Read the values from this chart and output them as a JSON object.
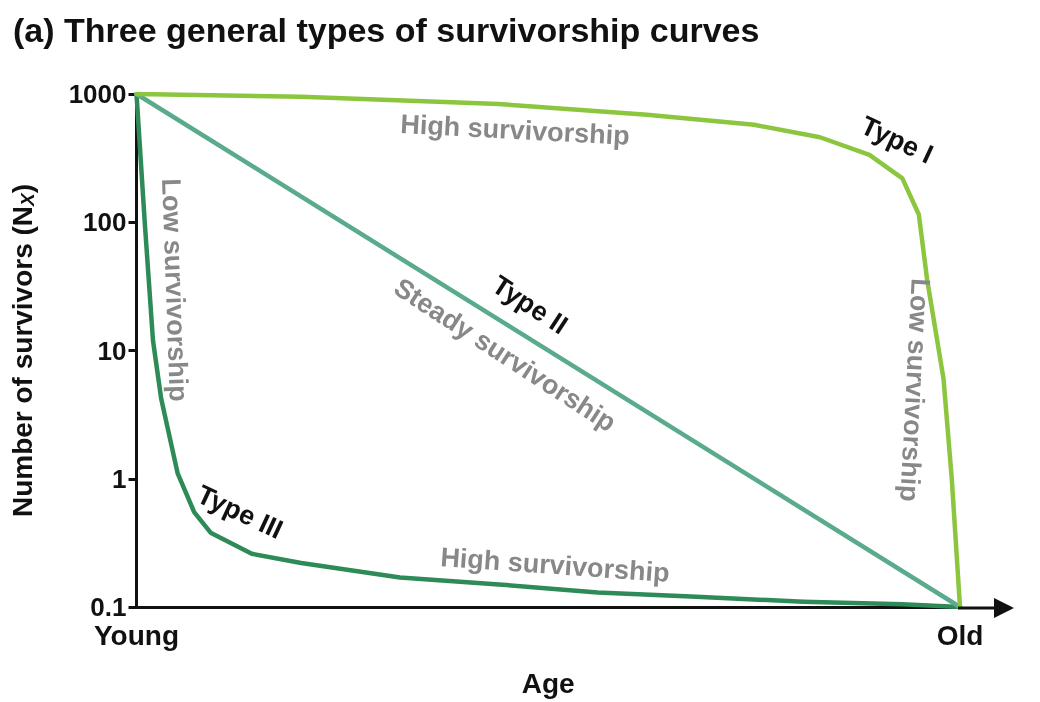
{
  "chart_data": {
    "type": "line",
    "title": "(a) Three general types of survivorship curves",
    "xlabel": "Age",
    "ylabel": "Number of survivors (N$_{X}$)",
    "log": "y",
    "marker": "none",
    "line_style": "solid",
    "legend": false,
    "categories": [
      "Young",
      null,
      null,
      null,
      null,
      null,
      null,
      null,
      null,
      null,
      null,
      null,
      null,
      null,
      null,
      null,
      null,
      null,
      null,
      null,
      null,
      null,
      null,
      null,
      null,
      null,
      null,
      null,
      null,
      null,
      null,
      null,
      null,
      null,
      null,
      null,
      null,
      null,
      null,
      null,
      null,
      null,
      null,
      null,
      null,
      null,
      null,
      null,
      null,
      null,
      null,
      null,
      null,
      null,
      null,
      null,
      null,
      null,
      null,
      null,
      null,
      null,
      null,
      null,
      null,
      null,
      null,
      null,
      null,
      null,
      null,
      null,
      null,
      null,
      null,
      null,
      null,
      null,
      null,
      null,
      null,
      null,
      null,
      null,
      null,
      null,
      null,
      null,
      null,
      null,
      null,
      null,
      null,
      null,
      null,
      null,
      null,
      null,
      null,
      null,
      "Old"
    ],
    "ylim": [
      0.1,
      1000
    ],
    "yticks": [
      0.1,
      1,
      10,
      100,
      1000
    ],
    "series": [
      {
        "name": "Type I",
        "color": "#8cc63f",
        "values": [
          1000,
          null,
          null,
          null,
          null,
          null,
          null,
          null,
          null,
          null,
          null,
          null,
          null,
          null,
          null,
          null,
          null,
          null,
          null,
          null,
          950,
          null,
          null,
          null,
          null,
          null,
          null,
          null,
          null,
          null,
          null,
          null,
          null,
          null,
          null,
          null,
          null,
          null,
          null,
          null,
          null,
          null,
          null,
          null,
          835,
          null,
          null,
          null,
          null,
          null,
          null,
          null,
          null,
          null,
          null,
          null,
          null,
          null,
          null,
          null,
          null,
          null,
          690,
          null,
          null,
          null,
          null,
          null,
          null,
          null,
          null,
          null,
          null,
          null,
          null,
          575,
          null,
          null,
          null,
          null,
          null,
          null,
          null,
          460,
          null,
          null,
          null,
          null,
          null,
          335,
          null,
          null,
          null,
          220,
          null,
          115,
          36,
          null,
          6,
          1,
          0.1
        ]
      },
      {
        "name": "Type II",
        "color": "#5aab8c",
        "values": [
          1000,
          null,
          null,
          null,
          null,
          null,
          null,
          null,
          null,
          null,
          null,
          null,
          null,
          null,
          null,
          null,
          null,
          null,
          null,
          null,
          null,
          null,
          null,
          null,
          null,
          null,
          null,
          null,
          null,
          null,
          null,
          null,
          null,
          null,
          null,
          null,
          null,
          null,
          null,
          null,
          null,
          null,
          null,
          null,
          null,
          null,
          null,
          null,
          null,
          null,
          null,
          null,
          null,
          null,
          null,
          null,
          null,
          null,
          null,
          null,
          null,
          null,
          null,
          null,
          null,
          null,
          null,
          null,
          null,
          null,
          null,
          null,
          null,
          null,
          null,
          null,
          null,
          null,
          null,
          null,
          null,
          null,
          null,
          null,
          null,
          null,
          null,
          null,
          null,
          null,
          null,
          null,
          null,
          null,
          null,
          null,
          null,
          null,
          null,
          null,
          0.1
        ]
      },
      {
        "name": "Type III",
        "color": "#2e8b57",
        "values": [
          1000,
          100,
          12,
          4.2,
          null,
          1.1,
          null,
          0.55,
          null,
          0.38,
          null,
          null,
          null,
          null,
          0.26,
          null,
          null,
          null,
          null,
          null,
          0.22,
          null,
          null,
          null,
          null,
          null,
          null,
          null,
          null,
          null,
          null,
          null,
          0.17,
          null,
          null,
          null,
          null,
          null,
          null,
          null,
          null,
          null,
          null,
          null,
          0.15,
          null,
          null,
          null,
          null,
          null,
          null,
          null,
          null,
          null,
          null,
          null,
          0.13,
          null,
          null,
          null,
          null,
          null,
          null,
          null,
          null,
          null,
          null,
          null,
          0.12,
          null,
          null,
          null,
          null,
          null,
          null,
          null,
          null,
          null,
          null,
          null,
          null,
          0.11,
          null,
          null,
          null,
          null,
          null,
          null,
          null,
          null,
          null,
          null,
          null,
          0.105,
          null,
          null,
          null,
          null,
          null,
          null,
          0.1
        ]
      }
    ],
    "annotations": [
      "High survivorship",
      "Low survivorship",
      "Steady survivorship",
      "Low survivorship",
      "High survivorship"
    ]
  }
}
